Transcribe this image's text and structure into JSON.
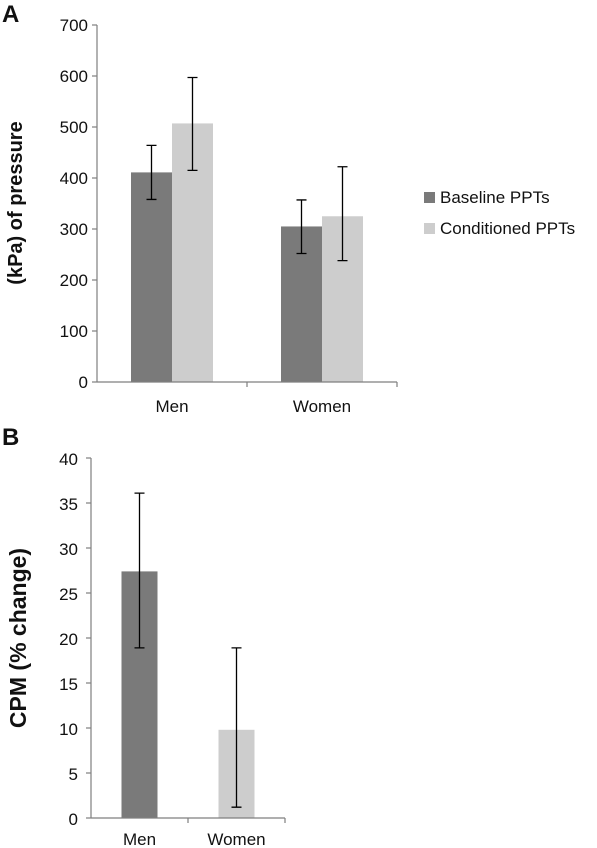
{
  "panels": {
    "a": {
      "letter": "A"
    },
    "b": {
      "letter": "B"
    }
  },
  "chart_data": [
    {
      "type": "bar",
      "panel": "A",
      "title": "",
      "xlabel": "",
      "ylabel": "(kPa) of pressure",
      "ylim": [
        0,
        700
      ],
      "yticks": [
        0,
        100,
        200,
        300,
        400,
        500,
        600,
        700
      ],
      "categories": [
        "Men",
        "Women"
      ],
      "legend_position": "right",
      "series": [
        {
          "name": "Baseline PPTs",
          "color": "#7a7a7a",
          "values": [
            411,
            305
          ],
          "error_low": [
            358,
            252
          ],
          "error_high": [
            464,
            357
          ]
        },
        {
          "name": "Conditioned PPTs",
          "color": "#cdcdcd",
          "values": [
            507,
            325
          ],
          "error_low": [
            415,
            238
          ],
          "error_high": [
            597,
            422
          ]
        }
      ]
    },
    {
      "type": "bar",
      "panel": "B",
      "title": "",
      "xlabel": "",
      "ylabel": "CPM (% change)",
      "ylim": [
        0,
        40
      ],
      "yticks": [
        0,
        5,
        10,
        15,
        20,
        25,
        30,
        35,
        40
      ],
      "categories": [
        "Men",
        "Women"
      ],
      "colors": [
        "#7a7a7a",
        "#cdcdcd"
      ],
      "values": [
        27.4,
        9.8
      ],
      "error_low": [
        18.9,
        1.2
      ],
      "error_high": [
        36.1,
        18.9
      ]
    }
  ]
}
